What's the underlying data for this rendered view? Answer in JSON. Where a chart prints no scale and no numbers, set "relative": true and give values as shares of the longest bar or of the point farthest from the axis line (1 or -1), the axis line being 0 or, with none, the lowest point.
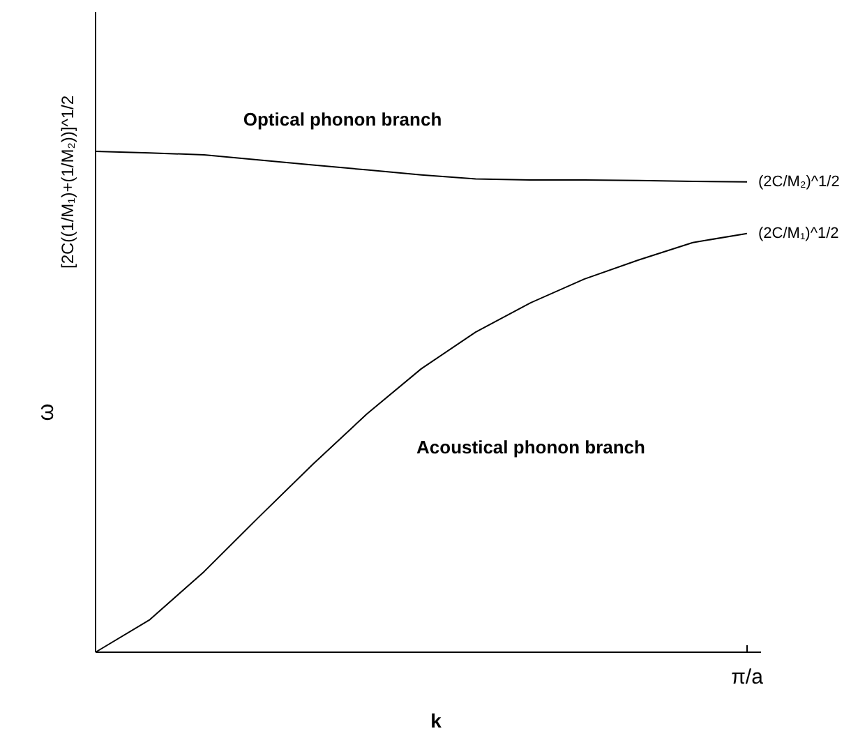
{
  "chart_data": {
    "type": "line",
    "relative": true,
    "xlabel": "k",
    "ylabel": "ω",
    "grid": false,
    "marker": "none",
    "line_style": "solid",
    "categories": [
      null,
      null,
      null,
      null,
      null,
      null,
      null,
      null,
      null,
      null,
      null,
      null,
      null
    ],
    "series": [
      {
        "name": "Optical phonon branch",
        "color": "#000000",
        "values": [
          1.0,
          0.997,
          0.993,
          0.983,
          0.973,
          0.963,
          0.953,
          0.945,
          0.943,
          0.943,
          0.942,
          0.94,
          0.939
        ]
      },
      {
        "name": "Acoustical phonon branch",
        "color": "#000000",
        "values": [
          0,
          0.065,
          0.161,
          0.269,
          0.375,
          0.476,
          0.566,
          0.639,
          0.697,
          0.745,
          0.783,
          0.818,
          0.836
        ]
      }
    ],
    "annotations": [
      "[2C((1/M₁)+(1/M₂))]^1/2",
      "(2C/M₂)^1/2",
      "(2C/M₁)^1/2",
      "π/a"
    ]
  }
}
